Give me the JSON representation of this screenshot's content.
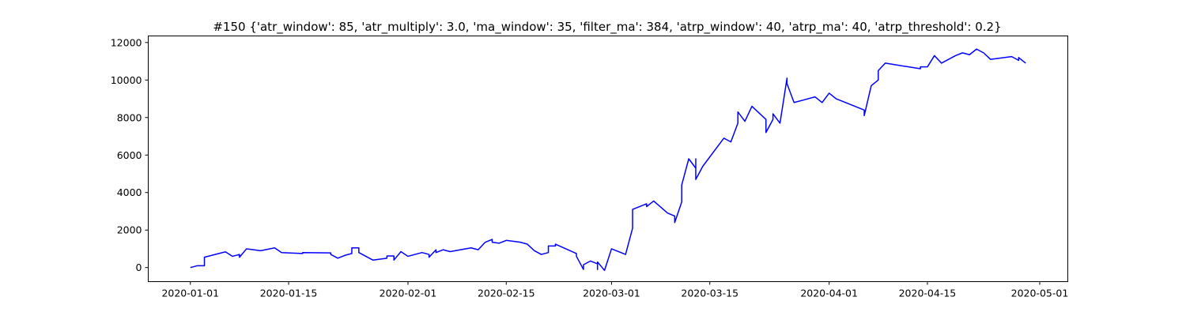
{
  "chart_data": {
    "type": "line",
    "title": "#150 {'atr_window': 85, 'atr_multiply': 3.0, 'ma_window': 35, 'filter_ma': 384, 'atrp_window': 40, 'atrp_ma': 40, 'atrp_threshold': 0.2}",
    "x": [
      "2020-01-01",
      "2020-01-02",
      "2020-01-03",
      "2020-01-03",
      "2020-01-06",
      "2020-01-07",
      "2020-01-08",
      "2020-01-08",
      "2020-01-09",
      "2020-01-10",
      "2020-01-11",
      "2020-01-13",
      "2020-01-14",
      "2020-01-17",
      "2020-01-17",
      "2020-01-21",
      "2020-01-21",
      "2020-01-22",
      "2020-01-23",
      "2020-01-24",
      "2020-01-24",
      "2020-01-25",
      "2020-01-25",
      "2020-01-27",
      "2020-01-29",
      "2020-01-29",
      "2020-01-30",
      "2020-01-30",
      "2020-01-31",
      "2020-02-01",
      "2020-02-03",
      "2020-02-04",
      "2020-02-04",
      "2020-02-05",
      "2020-02-05",
      "2020-02-06",
      "2020-02-07",
      "2020-02-10",
      "2020-02-11",
      "2020-02-12",
      "2020-02-13",
      "2020-02-13",
      "2020-02-14",
      "2020-02-15",
      "2020-02-17",
      "2020-02-18",
      "2020-02-19",
      "2020-02-20",
      "2020-02-21",
      "2020-02-21",
      "2020-02-22",
      "2020-02-22",
      "2020-02-25",
      "2020-02-25",
      "2020-02-26",
      "2020-02-26",
      "2020-02-27",
      "2020-02-28",
      "2020-02-28",
      "2020-02-28",
      "2020-02-29",
      "2020-03-01",
      "2020-03-03",
      "2020-03-04",
      "2020-03-04",
      "2020-03-06",
      "2020-03-06",
      "2020-03-07",
      "2020-03-09",
      "2020-03-10",
      "2020-03-10",
      "2020-03-11",
      "2020-03-11",
      "2020-03-12",
      "2020-03-13",
      "2020-03-13",
      "2020-03-13",
      "2020-03-14",
      "2020-03-17",
      "2020-03-18",
      "2020-03-19",
      "2020-03-19",
      "2020-03-20",
      "2020-03-21",
      "2020-03-23",
      "2020-03-23",
      "2020-03-24",
      "2020-03-24",
      "2020-03-25",
      "2020-03-26",
      "2020-03-26",
      "2020-03-27",
      "2020-03-30",
      "2020-03-31",
      "2020-04-01",
      "2020-04-02",
      "2020-04-06",
      "2020-04-06",
      "2020-04-07",
      "2020-04-08",
      "2020-04-08",
      "2020-04-09",
      "2020-04-14",
      "2020-04-14",
      "2020-04-15",
      "2020-04-16",
      "2020-04-17",
      "2020-04-19",
      "2020-04-20",
      "2020-04-21",
      "2020-04-22",
      "2020-04-23",
      "2020-04-24",
      "2020-04-27",
      "2020-04-28",
      "2020-04-28",
      "2020-04-29"
    ],
    "series": [
      {
        "color": "#0000ff",
        "values": [
          0,
          100,
          100,
          550,
          840,
          600,
          700,
          550,
          1000,
          950,
          900,
          1050,
          800,
          750,
          800,
          780,
          700,
          500,
          650,
          750,
          1050,
          1050,
          800,
          400,
          500,
          620,
          620,
          400,
          850,
          600,
          800,
          700,
          550,
          950,
          800,
          950,
          850,
          1050,
          950,
          1350,
          1500,
          1350,
          1300,
          1450,
          1350,
          1250,
          900,
          700,
          800,
          1150,
          1150,
          1250,
          750,
          600,
          -100,
          150,
          350,
          200,
          -100,
          300,
          -150,
          1000,
          700,
          2100,
          3100,
          3400,
          3250,
          3550,
          2900,
          2750,
          2400,
          3500,
          4400,
          5800,
          5300,
          5800,
          4700,
          5400,
          6900,
          6700,
          7700,
          8300,
          7800,
          8600,
          7900,
          7200,
          7900,
          8200,
          7700,
          10100,
          9800,
          8800,
          9100,
          8800,
          9300,
          9000,
          8400,
          8100,
          9700,
          10000,
          10500,
          10900,
          10600,
          10700,
          10700,
          11300,
          10900,
          11300,
          11450,
          11350,
          11650,
          11450,
          11100,
          11250,
          11050,
          11200,
          10900
        ]
      }
    ],
    "xlim": [
      "2019-12-26",
      "2020-05-05"
    ],
    "xticks": [
      "2020-01-01",
      "2020-01-15",
      "2020-02-01",
      "2020-02-15",
      "2020-03-01",
      "2020-03-15",
      "2020-04-01",
      "2020-04-15",
      "2020-05-01"
    ],
    "ylim": [
      -750,
      12350
    ],
    "yticks": [
      0,
      2000,
      4000,
      6000,
      8000,
      10000,
      12000
    ]
  }
}
